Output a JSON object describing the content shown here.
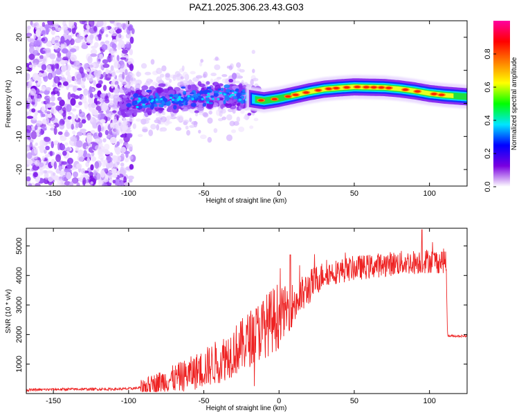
{
  "chart_data": [
    {
      "type": "heatmap",
      "title": "PAZ1.2025.306.23.43.G03",
      "xlabel": "Height of straight line (km)",
      "ylabel": "Frequency (Hz)",
      "xlim": [
        -168,
        125
      ],
      "ylim": [
        -25,
        25
      ],
      "x_ticks": [
        -150,
        -100,
        -50,
        0,
        50,
        100
      ],
      "y_ticks": [
        -20,
        -10,
        0,
        10,
        20
      ],
      "colorbar": {
        "label": "Normalized spectral amplitude",
        "range": [
          0,
          1
        ],
        "ticks": [
          "0.0",
          "0.2",
          "0.4",
          "0.6",
          "0.8"
        ],
        "colors": [
          "#ffffff",
          "#7a00e0",
          "#0000ff",
          "#00e6ff",
          "#00ff00",
          "#ffff00",
          "#ff8000",
          "#ff0000",
          "#ff00a0"
        ]
      },
      "ridge": {
        "x": [
          -105,
          -90,
          -80,
          -70,
          -60,
          -50,
          -40,
          -30,
          -20,
          -10,
          0,
          10,
          20,
          30,
          40,
          50,
          60,
          70,
          80,
          90,
          100,
          110,
          125
        ],
        "y": [
          0,
          0.5,
          1,
          1.2,
          1.5,
          2,
          2.5,
          2.5,
          1.5,
          0.8,
          1.5,
          2.5,
          3.5,
          4.3,
          4.7,
          5,
          4.9,
          4.8,
          4.4,
          3.8,
          3,
          2.5,
          2
        ]
      }
    },
    {
      "type": "line",
      "xlabel": "Height of straight line (km)",
      "ylabel": "SNR (10 * v/v)",
      "xlim": [
        -168,
        125
      ],
      "ylim": [
        0,
        5600
      ],
      "x_ticks": [
        -150,
        -100,
        -50,
        0,
        50,
        100
      ],
      "y_ticks": [
        1000,
        2000,
        3000,
        4000,
        5000
      ],
      "series": [
        {
          "name": "SNR",
          "color": "#ee2222",
          "x": [
            -168,
            -150,
            -130,
            -110,
            -100,
            -92,
            -85,
            -80,
            -70,
            -60,
            -50,
            -40,
            -30,
            -25,
            -20,
            -15,
            -10,
            -5,
            0,
            5,
            10,
            15,
            20,
            25,
            30,
            40,
            50,
            60,
            70,
            80,
            90,
            95,
            100,
            105,
            111,
            112,
            115,
            120,
            125
          ],
          "y": [
            120,
            140,
            150,
            150,
            160,
            200,
            300,
            380,
            500,
            650,
            850,
            1100,
            1450,
            1600,
            1850,
            2050,
            2250,
            2450,
            2650,
            2850,
            3050,
            3300,
            3600,
            3850,
            4050,
            4150,
            4250,
            4300,
            4380,
            4420,
            4450,
            4480,
            4500,
            4480,
            4500,
            1950,
            1950,
            1950,
            1950
          ]
        }
      ]
    }
  ]
}
